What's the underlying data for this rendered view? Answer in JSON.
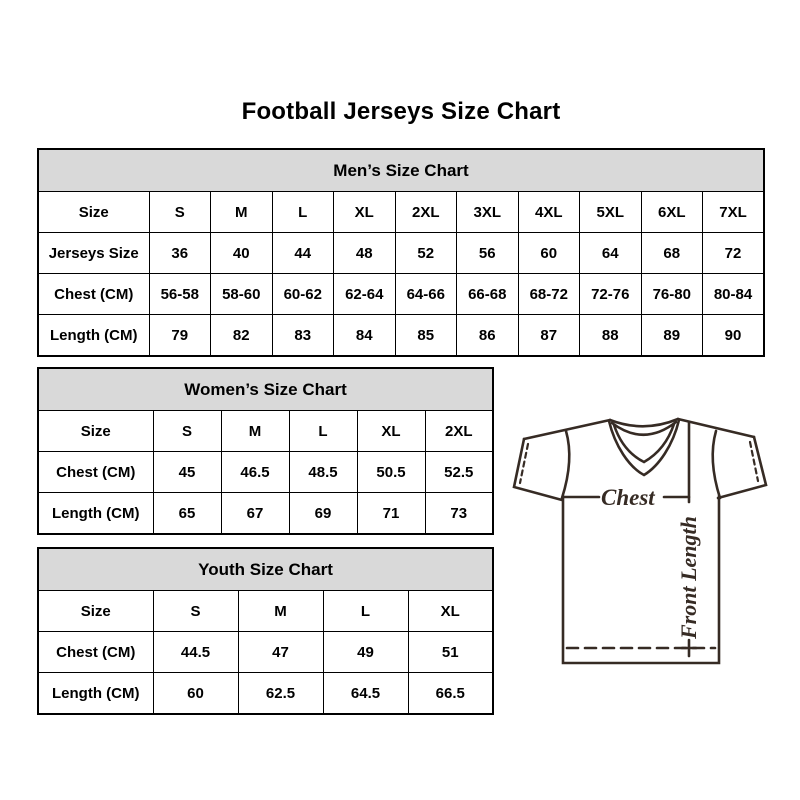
{
  "page": {
    "title": "Football Jerseys Size Chart"
  },
  "tables": {
    "men": {
      "title": "Men’s Size Chart",
      "rows": [
        [
          "Size",
          "S",
          "M",
          "L",
          "XL",
          "2XL",
          "3XL",
          "4XL",
          "5XL",
          "6XL",
          "7XL"
        ],
        [
          "Jerseys Size",
          "36",
          "40",
          "44",
          "48",
          "52",
          "56",
          "60",
          "64",
          "68",
          "72"
        ],
        [
          "Chest (CM)",
          "56-58",
          "58-60",
          "60-62",
          "62-64",
          "64-66",
          "66-68",
          "68-72",
          "72-76",
          "76-80",
          "80-84"
        ],
        [
          "Length (CM)",
          "79",
          "82",
          "83",
          "84",
          "85",
          "86",
          "87",
          "88",
          "89",
          "90"
        ]
      ]
    },
    "women": {
      "title": "Women’s Size Chart",
      "rows": [
        [
          "Size",
          "S",
          "M",
          "L",
          "XL",
          "2XL"
        ],
        [
          "Chest (CM)",
          "45",
          "46.5",
          "48.5",
          "50.5",
          "52.5"
        ],
        [
          "Length (CM)",
          "65",
          "67",
          "69",
          "71",
          "73"
        ]
      ]
    },
    "youth": {
      "title": "Youth Size Chart",
      "rows": [
        [
          "Size",
          "S",
          "M",
          "L",
          "XL"
        ],
        [
          "Chest (CM)",
          "44.5",
          "47",
          "49",
          "51"
        ],
        [
          "Length (CM)",
          "60",
          "62.5",
          "64.5",
          "66.5"
        ]
      ]
    }
  },
  "jersey": {
    "chest_label": "Chest",
    "front_length_label": "Front Length"
  },
  "colors": {
    "table_header_bg": "#d9d9d9",
    "table_border": "#000000",
    "jersey_line": "#362b24",
    "text": "#000000",
    "background": "#ffffff"
  }
}
